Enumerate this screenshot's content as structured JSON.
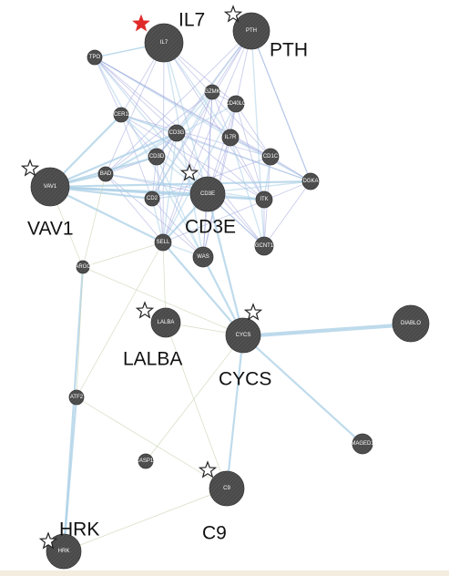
{
  "network": {
    "genes": [
      "IL7",
      "PTH",
      "TPO",
      "GZMK",
      "FCER1A",
      "CD40LG",
      "CD3G",
      "IL7R",
      "CD3D",
      "CD1C",
      "BAD",
      "VAV1",
      "DGKA",
      "CD3E",
      "CD2",
      "ITK",
      "SELL",
      "GCNT1",
      "WAS",
      "PPARGC1A",
      "LALBA",
      "CYCS",
      "DIABLO",
      "ATF2",
      "MAGED1",
      "CASP10",
      "C9",
      "HRK"
    ],
    "highlighted_labels": [
      "IL7",
      "PTH",
      "VAV1",
      "CD3E",
      "LALBA",
      "CYCS",
      "HRK",
      "C9"
    ],
    "starred_genes": [
      "IL7",
      "PTH",
      "VAV1",
      "CD3E",
      "LALBA",
      "CYCS",
      "HRK",
      "C9"
    ],
    "seed_gene": "IL7"
  },
  "colors": {
    "node_fill": "#4a4a4a",
    "node_hatch": "#5c5c5c",
    "edge_coexpression": "#9fa4dc",
    "edge_pathway": "#a9cfe6",
    "edge_weak": "#c9d4b4",
    "seed_star": "#e02a2a"
  }
}
